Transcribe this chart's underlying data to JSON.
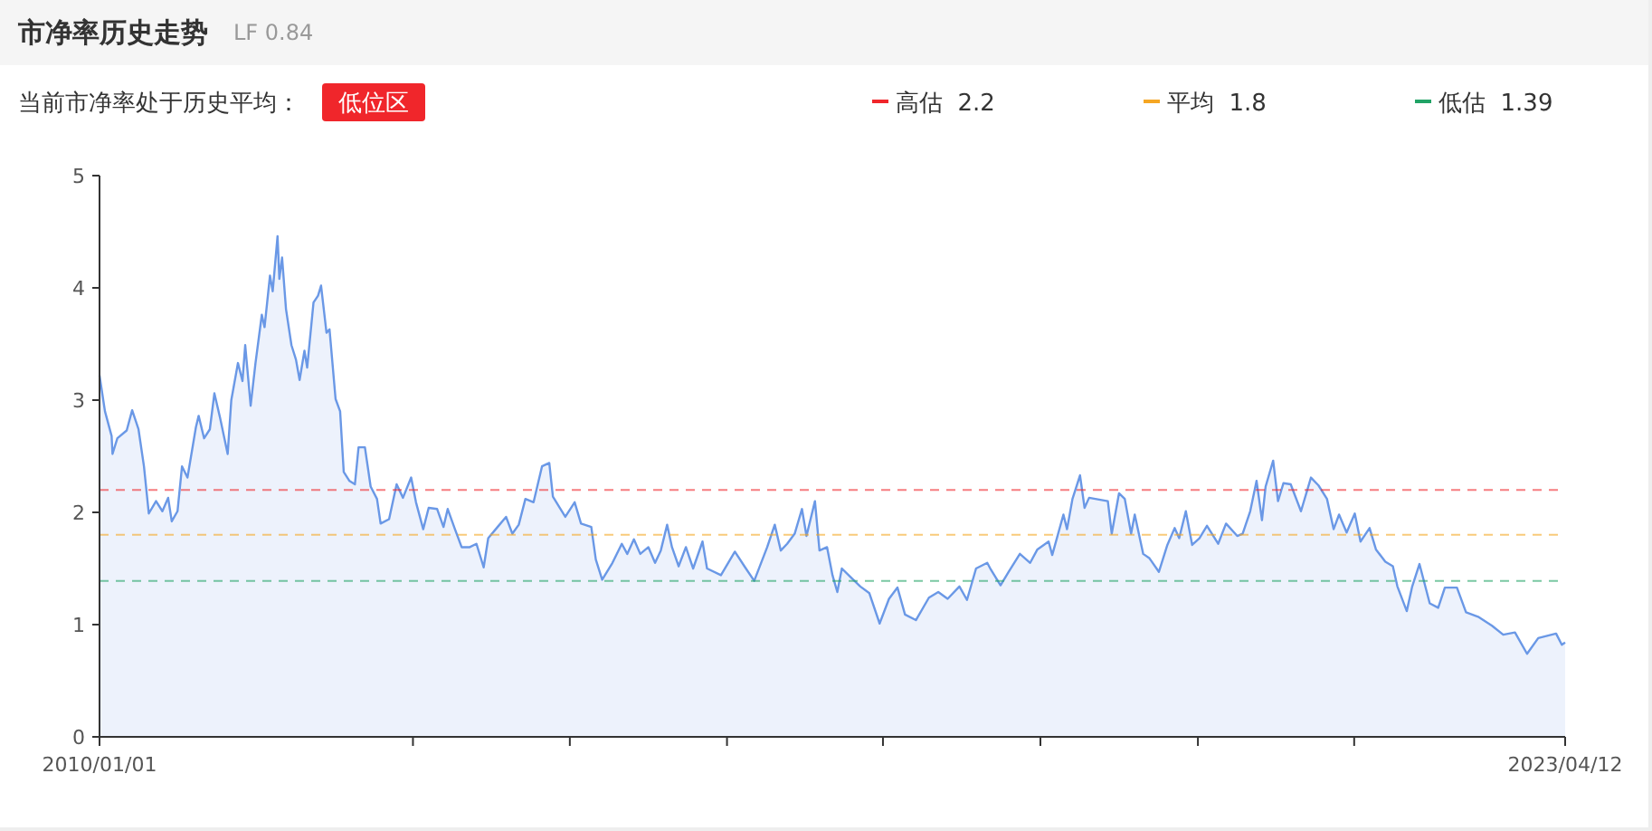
{
  "chart_data": {
    "type": "area",
    "title": "市净率历史走势",
    "subtitle": "LF 0.84",
    "annotations": [
      "当前市净率处于历史平均：",
      "低位区"
    ],
    "x": [
      "2010-01-01",
      "2010-01-19",
      "2010-02-10",
      "2010-02-13",
      "2010-03-01",
      "2010-04-01",
      "2010-04-19",
      "2010-05-10",
      "2010-05-28",
      "2010-06-13",
      "2010-07-07",
      "2010-07-28",
      "2010-08-16",
      "2010-08-28",
      "2010-09-16",
      "2010-10-01",
      "2010-10-19",
      "2010-11-16",
      "2010-11-25",
      "2010-12-13",
      "2011-01-01",
      "2011-01-16",
      "2011-02-04",
      "2011-03-01",
      "2011-03-13",
      "2011-04-04",
      "2011-04-19",
      "2011-04-28",
      "2011-05-16",
      "2011-06-01",
      "2011-06-22",
      "2011-07-01",
      "2011-07-19",
      "2011-07-28",
      "2011-08-13",
      "2011-08-19",
      "2011-08-28",
      "2011-09-10",
      "2011-09-28",
      "2011-10-13",
      "2011-10-25",
      "2011-11-10",
      "2011-11-19",
      "2011-12-10",
      "2011-12-25",
      "2012-01-04",
      "2012-01-22",
      "2012-02-01",
      "2012-02-21",
      "2012-03-07",
      "2012-03-19",
      "2012-04-07",
      "2012-04-25",
      "2012-05-07",
      "2012-05-28",
      "2012-06-16",
      "2012-07-07",
      "2012-07-19",
      "2012-08-16",
      "2012-09-10",
      "2012-10-01",
      "2012-10-28",
      "2012-11-13",
      "2012-12-07",
      "2012-12-25",
      "2013-01-22",
      "2013-02-12",
      "2013-02-26",
      "2013-03-22",
      "2013-04-13",
      "2013-05-10",
      "2013-06-01",
      "2013-06-25",
      "2013-07-10",
      "2013-08-10",
      "2013-09-07",
      "2013-09-28",
      "2013-10-19",
      "2013-11-10",
      "2013-12-07",
      "2014-01-04",
      "2014-01-28",
      "2014-02-09",
      "2014-03-04",
      "2014-03-22",
      "2014-04-22",
      "2014-05-13",
      "2014-06-16",
      "2014-07-01",
      "2014-07-22",
      "2014-08-25",
      "2014-09-25",
      "2014-10-13",
      "2014-11-04",
      "2014-11-25",
      "2014-12-22",
      "2015-01-13",
      "2015-02-01",
      "2015-02-22",
      "2015-03-10",
      "2015-04-01",
      "2015-04-25",
      "2015-05-19",
      "2015-06-19",
      "2015-07-04",
      "2015-08-19",
      "2015-10-04",
      "2015-11-07",
      "2015-12-07",
      "2016-01-19",
      "2016-02-13",
      "2016-03-04",
      "2016-03-25",
      "2016-04-19",
      "2016-05-13",
      "2016-05-28",
      "2016-06-25",
      "2016-07-10",
      "2016-08-04",
      "2016-08-22",
      "2016-09-07",
      "2016-09-22",
      "2016-10-22",
      "2016-11-22",
      "2016-12-22",
      "2017-01-25",
      "2017-02-25",
      "2017-03-25",
      "2017-04-19",
      "2017-05-25",
      "2017-07-07",
      "2017-08-07",
      "2017-09-07",
      "2017-10-16",
      "2017-11-10",
      "2017-12-10",
      "2018-01-16",
      "2018-01-28",
      "2018-03-01",
      "2018-03-28",
      "2018-05-04",
      "2018-06-07",
      "2018-07-01",
      "2018-08-07",
      "2018-08-19",
      "2018-09-25",
      "2018-10-07",
      "2018-10-25",
      "2018-11-19",
      "2018-12-04",
      "2018-12-19",
      "2019-02-19",
      "2019-03-04",
      "2019-03-28",
      "2019-04-16",
      "2019-05-07",
      "2019-05-19",
      "2019-06-16",
      "2019-07-07",
      "2019-08-07",
      "2019-09-04",
      "2019-09-28",
      "2019-10-13",
      "2019-11-04",
      "2019-11-25",
      "2019-12-19",
      "2020-01-13",
      "2020-02-19",
      "2020-03-16",
      "2020-04-22",
      "2020-05-10",
      "2020-06-04",
      "2020-06-25",
      "2020-07-13",
      "2020-07-25",
      "2020-08-19",
      "2020-09-04",
      "2020-09-22",
      "2020-10-16",
      "2020-11-19",
      "2020-12-22",
      "2021-01-16",
      "2021-02-13",
      "2021-03-07",
      "2021-03-25",
      "2021-04-19",
      "2021-05-16",
      "2021-06-04",
      "2021-07-04",
      "2021-07-25",
      "2021-08-25",
      "2021-09-19",
      "2021-10-04",
      "2021-11-04",
      "2021-11-22",
      "2021-12-16",
      "2022-01-19",
      "2022-02-16",
      "2022-03-10",
      "2022-04-19",
      "2022-05-19",
      "2022-06-28",
      "2022-08-13",
      "2022-09-19",
      "2022-10-28",
      "2022-12-07",
      "2023-01-13",
      "2023-03-13",
      "2023-04-01",
      "2023-04-12"
    ],
    "series": [
      {
        "color": "#6a98e6",
        "values": [
          3.22,
          2.9,
          2.68,
          2.52,
          2.66,
          2.73,
          2.91,
          2.74,
          2.41,
          1.99,
          2.1,
          2.01,
          2.13,
          1.92,
          2.01,
          2.41,
          2.31,
          2.76,
          2.86,
          2.66,
          2.74,
          3.06,
          2.84,
          2.52,
          3.0,
          3.33,
          3.17,
          3.49,
          2.95,
          3.33,
          3.76,
          3.65,
          4.11,
          3.97,
          4.46,
          4.08,
          4.27,
          3.81,
          3.49,
          3.36,
          3.18,
          3.44,
          3.29,
          3.87,
          3.93,
          4.02,
          3.6,
          3.63,
          3.01,
          2.9,
          2.36,
          2.28,
          2.25,
          2.58,
          2.58,
          2.23,
          2.12,
          1.9,
          1.94,
          2.25,
          2.13,
          2.31,
          2.09,
          1.85,
          2.04,
          2.03,
          1.87,
          2.03,
          1.85,
          1.69,
          1.69,
          1.72,
          1.51,
          1.77,
          1.87,
          1.96,
          1.81,
          1.89,
          2.12,
          2.09,
          2.41,
          2.44,
          2.14,
          2.04,
          1.96,
          2.09,
          1.9,
          1.87,
          1.58,
          1.4,
          1.55,
          1.72,
          1.63,
          1.76,
          1.63,
          1.69,
          1.55,
          1.66,
          1.89,
          1.69,
          1.52,
          1.69,
          1.5,
          1.74,
          1.5,
          1.44,
          1.65,
          1.51,
          1.39,
          1.69,
          1.89,
          1.66,
          1.72,
          1.81,
          2.03,
          1.79,
          2.1,
          1.66,
          1.69,
          1.44,
          1.29,
          1.5,
          1.42,
          1.34,
          1.28,
          1.01,
          1.23,
          1.33,
          1.09,
          1.04,
          1.24,
          1.29,
          1.23,
          1.34,
          1.22,
          1.5,
          1.55,
          1.49,
          1.35,
          1.47,
          1.63,
          1.55,
          1.67,
          1.74,
          1.62,
          1.98,
          1.85,
          2.12,
          2.33,
          2.04,
          2.13,
          2.1,
          1.81,
          2.17,
          2.12,
          1.81,
          1.98,
          1.63,
          1.59,
          1.47,
          1.71,
          1.86,
          1.77,
          2.01,
          1.71,
          1.77,
          1.88,
          1.72,
          1.9,
          1.79,
          1.81,
          2.01,
          2.28,
          1.93,
          2.23,
          2.46,
          2.1,
          2.26,
          2.25,
          2.01,
          2.31,
          2.24,
          2.12,
          1.85,
          1.98,
          1.82,
          1.99,
          1.74,
          1.86,
          1.67,
          1.56,
          1.52,
          1.34,
          1.12,
          1.34,
          1.54,
          1.19,
          1.15,
          1.33,
          1.33,
          1.11,
          1.07,
          0.99,
          0.91,
          0.93,
          0.74,
          0.88,
          0.92,
          0.82,
          0.84
        ]
      }
    ],
    "xlim": [
      "2010-01-01",
      "2023-04-12"
    ],
    "xticks": [
      {
        "value": "2010-01-01",
        "label": "2010/01/01"
      },
      {
        "value": "2012-11-03",
        "label": null
      },
      {
        "value": "2014-04-06",
        "label": null
      },
      {
        "value": "2015-09-08",
        "label": null
      },
      {
        "value": "2017-02-05",
        "label": null
      },
      {
        "value": "2018-07-11",
        "label": null
      },
      {
        "value": "2019-12-14",
        "label": null
      },
      {
        "value": "2021-05-14",
        "label": null
      },
      {
        "value": "2023-04-12",
        "label": "2023/04/12"
      }
    ],
    "ylim": [
      0,
      5
    ],
    "yticks": [
      0,
      1,
      2,
      3,
      4,
      5
    ],
    "ref_lines": [
      {
        "axis": "y",
        "value": 2.2,
        "label": "高估  2.2",
        "color": "#f0262b",
        "line_style": "dashed"
      },
      {
        "axis": "y",
        "value": 1.8,
        "label": "平均  1.8",
        "color": "#f5a623",
        "line_style": "dashed"
      },
      {
        "axis": "y",
        "value": 1.39,
        "label": "低估  1.39",
        "color": "#21a366",
        "line_style": "dashed"
      }
    ],
    "legend": "top right",
    "grid": false
  }
}
